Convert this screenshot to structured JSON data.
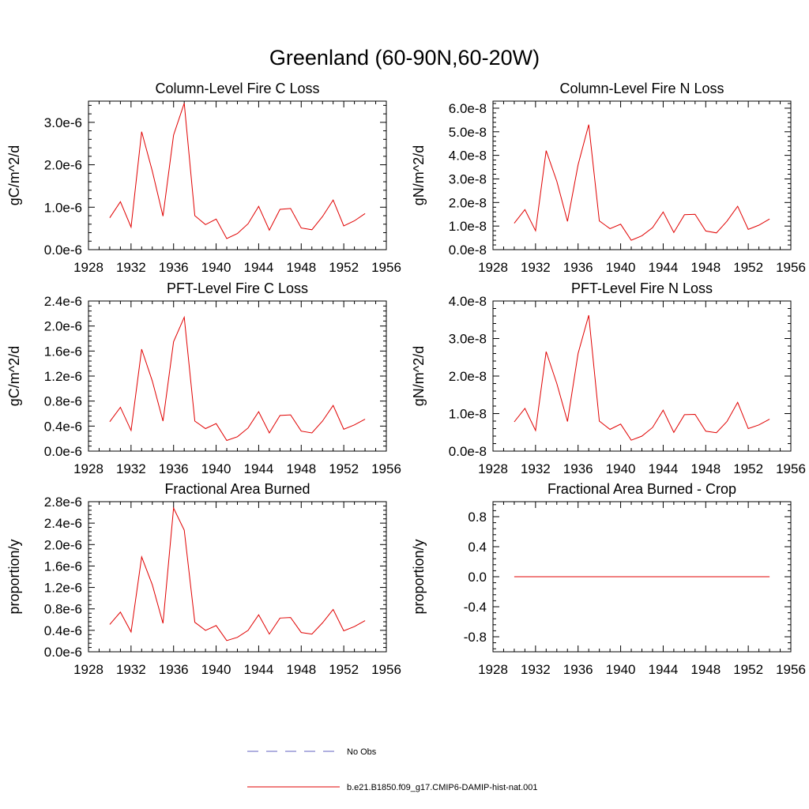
{
  "figure": {
    "title": "Greenland (60-90N,60-20W)",
    "legend": [
      {
        "label": "No Obs",
        "color": "#6060c0",
        "style": "dashed"
      },
      {
        "label": "b.e21.B1850.f09_g17.CMIP6-DAMIP-hist-nat.001",
        "color": "#e00000",
        "style": "solid"
      }
    ]
  },
  "chart_data": [
    {
      "type": "line",
      "title": "Column-Level Fire C Loss",
      "xlabel": "",
      "ylabel": "gC/m^2/d",
      "xlim": [
        1928,
        1956
      ],
      "ylim": [
        0,
        3.5e-06
      ],
      "x_ticks": [
        1928,
        1932,
        1936,
        1940,
        1944,
        1948,
        1952,
        1956
      ],
      "y_ticks": [
        0,
        1e-06,
        2e-06,
        3e-06
      ],
      "y_tick_labels": [
        "0.0e-6",
        "1.0e-6",
        "2.0e-6",
        "3.0e-6"
      ],
      "series": [
        {
          "name": "b.e21.B1850.f09_g17.CMIP6-DAMIP-hist-nat.001",
          "color": "#e00000",
          "x": [
            1930,
            1931,
            1932,
            1933,
            1934,
            1935,
            1936,
            1937,
            1938,
            1939,
            1940,
            1941,
            1942,
            1943,
            1944,
            1945,
            1946,
            1947,
            1948,
            1949,
            1950,
            1951,
            1952,
            1953,
            1954
          ],
          "values": [
            7.5e-07,
            1.13e-06,
            5.3e-07,
            2.78e-06,
            1.85e-06,
            7.9e-07,
            2.7e-06,
            3.45e-06,
            8e-07,
            5.9e-07,
            7.2e-07,
            2.6e-07,
            3.8e-07,
            6.1e-07,
            1.02e-06,
            4.6e-07,
            9.5e-07,
            9.7e-07,
            5.1e-07,
            4.7e-07,
            7.8e-07,
            1.17e-06,
            5.6e-07,
            6.8e-07,
            8.5e-07
          ]
        }
      ]
    },
    {
      "type": "line",
      "title": "Column-Level Fire N Loss",
      "xlabel": "",
      "ylabel": "gN/m^2/d",
      "xlim": [
        1928,
        1956
      ],
      "ylim": [
        0,
        6.3e-08
      ],
      "x_ticks": [
        1928,
        1932,
        1936,
        1940,
        1944,
        1948,
        1952,
        1956
      ],
      "y_ticks": [
        0,
        1e-08,
        2e-08,
        3e-08,
        4e-08,
        5e-08,
        6e-08
      ],
      "y_tick_labels": [
        "0.0e-8",
        "1.0e-8",
        "2.0e-8",
        "3.0e-8",
        "4.0e-8",
        "5.0e-8",
        "6.0e-8"
      ],
      "series": [
        {
          "name": "b.e21.B1850.f09_g17.CMIP6-DAMIP-hist-nat.001",
          "color": "#e00000",
          "x": [
            1930,
            1931,
            1932,
            1933,
            1934,
            1935,
            1936,
            1937,
            1938,
            1939,
            1940,
            1941,
            1942,
            1943,
            1944,
            1945,
            1946,
            1947,
            1948,
            1949,
            1950,
            1951,
            1952,
            1953,
            1954
          ],
          "values": [
            1.12e-08,
            1.7e-08,
            8e-09,
            4.2e-08,
            2.9e-08,
            1.2e-08,
            3.6e-08,
            5.3e-08,
            1.22e-08,
            8.9e-09,
            1.08e-08,
            4e-09,
            5.9e-09,
            9.3e-09,
            1.6e-08,
            7.3e-09,
            1.48e-08,
            1.5e-08,
            7.9e-09,
            7.1e-09,
            1.21e-08,
            1.84e-08,
            8.6e-09,
            1.04e-08,
            1.3e-08
          ]
        }
      ]
    },
    {
      "type": "line",
      "title": "PFT-Level Fire C Loss",
      "xlabel": "",
      "ylabel": "gC/m^2/d",
      "xlim": [
        1928,
        1956
      ],
      "ylim": [
        0,
        2.4e-06
      ],
      "x_ticks": [
        1928,
        1932,
        1936,
        1940,
        1944,
        1948,
        1952,
        1956
      ],
      "y_ticks": [
        0,
        4e-07,
        8e-07,
        1.2e-06,
        1.6e-06,
        2e-06,
        2.4e-06
      ],
      "y_tick_labels": [
        "0.0e-6",
        "0.4e-6",
        "0.8e-6",
        "1.2e-6",
        "1.6e-6",
        "2.0e-6",
        "2.4e-6"
      ],
      "series": [
        {
          "name": "b.e21.B1850.f09_g17.CMIP6-DAMIP-hist-nat.001",
          "color": "#e00000",
          "x": [
            1930,
            1931,
            1932,
            1933,
            1934,
            1935,
            1936,
            1937,
            1938,
            1939,
            1940,
            1941,
            1942,
            1943,
            1944,
            1945,
            1946,
            1947,
            1948,
            1949,
            1950,
            1951,
            1952,
            1953,
            1954
          ],
          "values": [
            4.7e-07,
            7e-07,
            3.3e-07,
            1.63e-06,
            1.12e-06,
            4.8e-07,
            1.75e-06,
            2.14e-06,
            4.8e-07,
            3.6e-07,
            4.4e-07,
            1.7e-07,
            2.3e-07,
            3.7e-07,
            6.3e-07,
            2.9e-07,
            5.7e-07,
            5.8e-07,
            3.2e-07,
            2.9e-07,
            4.8e-07,
            7.3e-07,
            3.5e-07,
            4.2e-07,
            5.1e-07
          ]
        }
      ]
    },
    {
      "type": "line",
      "title": "PFT-Level Fire N Loss",
      "xlabel": "",
      "ylabel": "gN/m^2/d",
      "xlim": [
        1928,
        1956
      ],
      "ylim": [
        0,
        4e-08
      ],
      "x_ticks": [
        1928,
        1932,
        1936,
        1940,
        1944,
        1948,
        1952,
        1956
      ],
      "y_ticks": [
        0,
        1e-08,
        2e-08,
        3e-08,
        4e-08
      ],
      "y_tick_labels": [
        "0.0e-8",
        "1.0e-8",
        "2.0e-8",
        "3.0e-8",
        "4.0e-8"
      ],
      "series": [
        {
          "name": "b.e21.B1850.f09_g17.CMIP6-DAMIP-hist-nat.001",
          "color": "#e00000",
          "x": [
            1930,
            1931,
            1932,
            1933,
            1934,
            1935,
            1936,
            1937,
            1938,
            1939,
            1940,
            1941,
            1942,
            1943,
            1944,
            1945,
            1946,
            1947,
            1948,
            1949,
            1950,
            1951,
            1952,
            1953,
            1954
          ],
          "values": [
            7.8e-09,
            1.14e-08,
            5.5e-09,
            2.65e-08,
            1.8e-08,
            7.9e-09,
            2.6e-08,
            3.62e-08,
            8e-09,
            5.8e-09,
            7.2e-09,
            2.9e-09,
            4e-09,
            6.3e-09,
            1.09e-08,
            5e-09,
            9.7e-09,
            9.8e-09,
            5.3e-09,
            4.9e-09,
            7.9e-09,
            1.3e-08,
            6e-09,
            7e-09,
            8.5e-09
          ]
        }
      ]
    },
    {
      "type": "line",
      "title": "Fractional Area Burned",
      "xlabel": "",
      "ylabel": "proportion/y",
      "xlim": [
        1928,
        1956
      ],
      "ylim": [
        0,
        2.8e-06
      ],
      "x_ticks": [
        1928,
        1932,
        1936,
        1940,
        1944,
        1948,
        1952,
        1956
      ],
      "y_ticks": [
        0,
        4e-07,
        8e-07,
        1.2e-06,
        1.6e-06,
        2e-06,
        2.4e-06,
        2.8e-06
      ],
      "y_tick_labels": [
        "0.0e-6",
        "0.4e-6",
        "0.8e-6",
        "1.2e-6",
        "1.6e-6",
        "2.0e-6",
        "2.4e-6",
        "2.8e-6"
      ],
      "series": [
        {
          "name": "b.e21.B1850.f09_g17.CMIP6-DAMIP-hist-nat.001",
          "color": "#e00000",
          "x": [
            1930,
            1931,
            1932,
            1933,
            1934,
            1935,
            1936,
            1937,
            1938,
            1939,
            1940,
            1941,
            1942,
            1943,
            1944,
            1945,
            1946,
            1947,
            1948,
            1949,
            1950,
            1951,
            1952,
            1953,
            1954
          ],
          "values": [
            5.1e-07,
            7.4e-07,
            3.7e-07,
            1.77e-06,
            1.25e-06,
            5.3e-07,
            2.68e-06,
            2.27e-06,
            5.5e-07,
            4e-07,
            4.9e-07,
            2.1e-07,
            2.7e-07,
            4e-07,
            6.9e-07,
            3.3e-07,
            6.3e-07,
            6.4e-07,
            3.6e-07,
            3.3e-07,
            5.4e-07,
            7.9e-07,
            3.9e-07,
            4.7e-07,
            5.8e-07
          ]
        }
      ]
    },
    {
      "type": "line",
      "title": "Fractional Area Burned - Crop",
      "xlabel": "",
      "ylabel": "proportion/y",
      "xlim": [
        1928,
        1956
      ],
      "ylim": [
        -1.0,
        1.0
      ],
      "x_ticks": [
        1928,
        1932,
        1936,
        1940,
        1944,
        1948,
        1952,
        1956
      ],
      "y_ticks": [
        -0.8,
        -0.4,
        0.0,
        0.4,
        0.8
      ],
      "y_tick_labels": [
        "-0.8",
        "-0.4",
        "0.0",
        "0.4",
        "0.8"
      ],
      "series": [
        {
          "name": "b.e21.B1850.f09_g17.CMIP6-DAMIP-hist-nat.001",
          "color": "#e00000",
          "x": [
            1930,
            1931,
            1932,
            1933,
            1934,
            1935,
            1936,
            1937,
            1938,
            1939,
            1940,
            1941,
            1942,
            1943,
            1944,
            1945,
            1946,
            1947,
            1948,
            1949,
            1950,
            1951,
            1952,
            1953,
            1954
          ],
          "values": [
            0,
            0,
            0,
            0,
            0,
            0,
            0,
            0,
            0,
            0,
            0,
            0,
            0,
            0,
            0,
            0,
            0,
            0,
            0,
            0,
            0,
            0,
            0,
            0,
            0
          ]
        }
      ]
    }
  ]
}
